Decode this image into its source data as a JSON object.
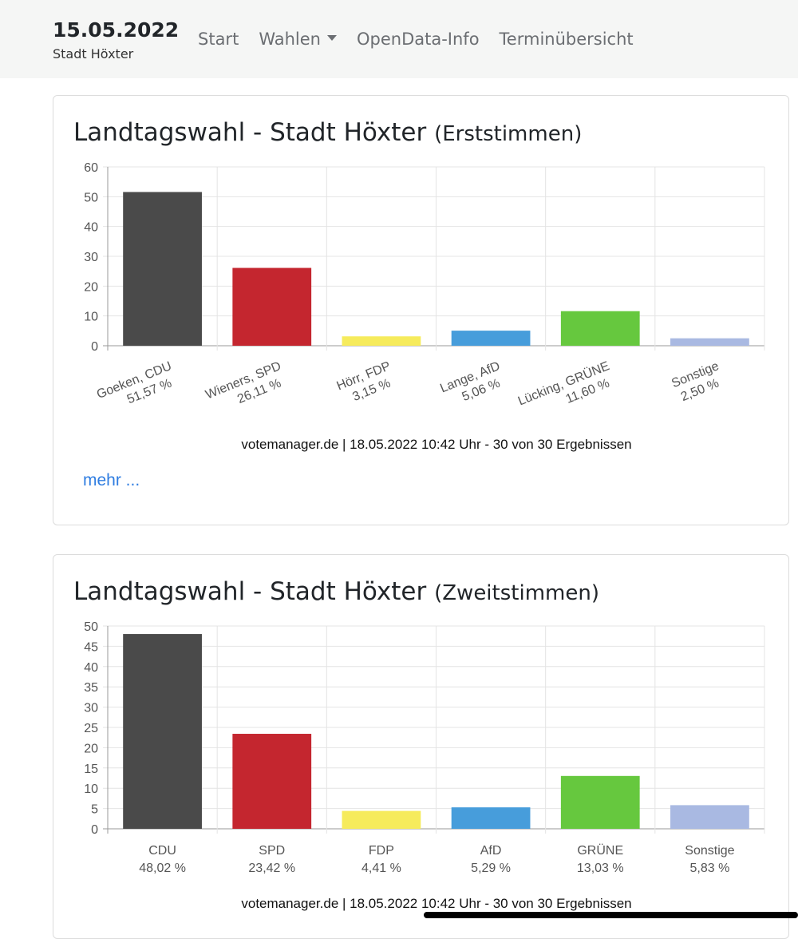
{
  "nav": {
    "brand_date": "15.05.2022",
    "brand_sub": "Stadt Höxter",
    "items": [
      "Start",
      "Wahlen",
      "OpenData-Info",
      "Terminübersicht"
    ]
  },
  "cards": [
    {
      "title": "Landtagswahl - Stadt Höxter",
      "subtitle": "(Erststimmen)",
      "footer": "votemanager.de | 18.05.2022 10:42 Uhr - 30 von 30 Ergebnissen",
      "link": "mehr ..."
    },
    {
      "title": "Landtagswahl - Stadt Höxter",
      "subtitle": "(Zweitstimmen)",
      "footer": "votemanager.de | 18.05.2022 10:42 Uhr - 30 von 30 Ergebnissen"
    }
  ],
  "chart_data": [
    {
      "type": "bar",
      "title": "Landtagswahl - Stadt Höxter (Erststimmen)",
      "categories": [
        "Goeken, CDU",
        "Wieners, SPD",
        "Hörr, FDP",
        "Lange, AfD",
        "Lücking, GRÜNE",
        "Sonstige"
      ],
      "value_labels": [
        "51,57 %",
        "26,11 %",
        "3,15 %",
        "5,06 %",
        "11,60 %",
        "2,50 %"
      ],
      "values": [
        51.57,
        26.11,
        3.15,
        5.06,
        11.6,
        2.5
      ],
      "colors": [
        "#4a4a4a",
        "#c4262f",
        "#f6eb5c",
        "#479ddb",
        "#66c83e",
        "#a9b9e2"
      ],
      "ylim": [
        0,
        60
      ],
      "yticks": [
        0,
        10,
        20,
        30,
        40,
        50,
        60
      ],
      "grid": true,
      "rotated_labels": true
    },
    {
      "type": "bar",
      "title": "Landtagswahl - Stadt Höxter (Zweitstimmen)",
      "categories": [
        "CDU",
        "SPD",
        "FDP",
        "AfD",
        "GRÜNE",
        "Sonstige"
      ],
      "value_labels": [
        "48,02 %",
        "23,42 %",
        "4,41 %",
        "5,29 %",
        "13,03 %",
        "5,83 %"
      ],
      "values": [
        48.02,
        23.42,
        4.41,
        5.29,
        13.03,
        5.83
      ],
      "colors": [
        "#4a4a4a",
        "#c4262f",
        "#f6eb5c",
        "#479ddb",
        "#66c83e",
        "#a9b9e2"
      ],
      "ylim": [
        0,
        50
      ],
      "yticks": [
        0,
        5,
        10,
        15,
        20,
        25,
        30,
        35,
        40,
        45,
        50
      ],
      "grid": true,
      "rotated_labels": false
    }
  ]
}
